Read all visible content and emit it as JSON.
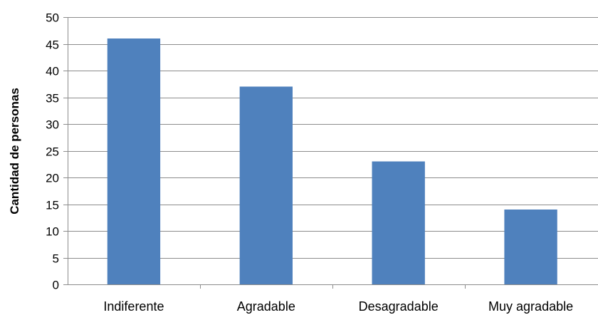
{
  "chart_data": {
    "type": "bar",
    "title": "",
    "xlabel": "",
    "ylabel": "Cantidad de personas",
    "categories": [
      "Indiferente",
      "Agradable",
      "Desagradable",
      "Muy agradable"
    ],
    "values": [
      46,
      37,
      23,
      14
    ],
    "ylim": [
      0,
      50
    ],
    "ytick_step": 5,
    "grid": true,
    "legend": "none",
    "bar_color": "#4f81bd"
  }
}
